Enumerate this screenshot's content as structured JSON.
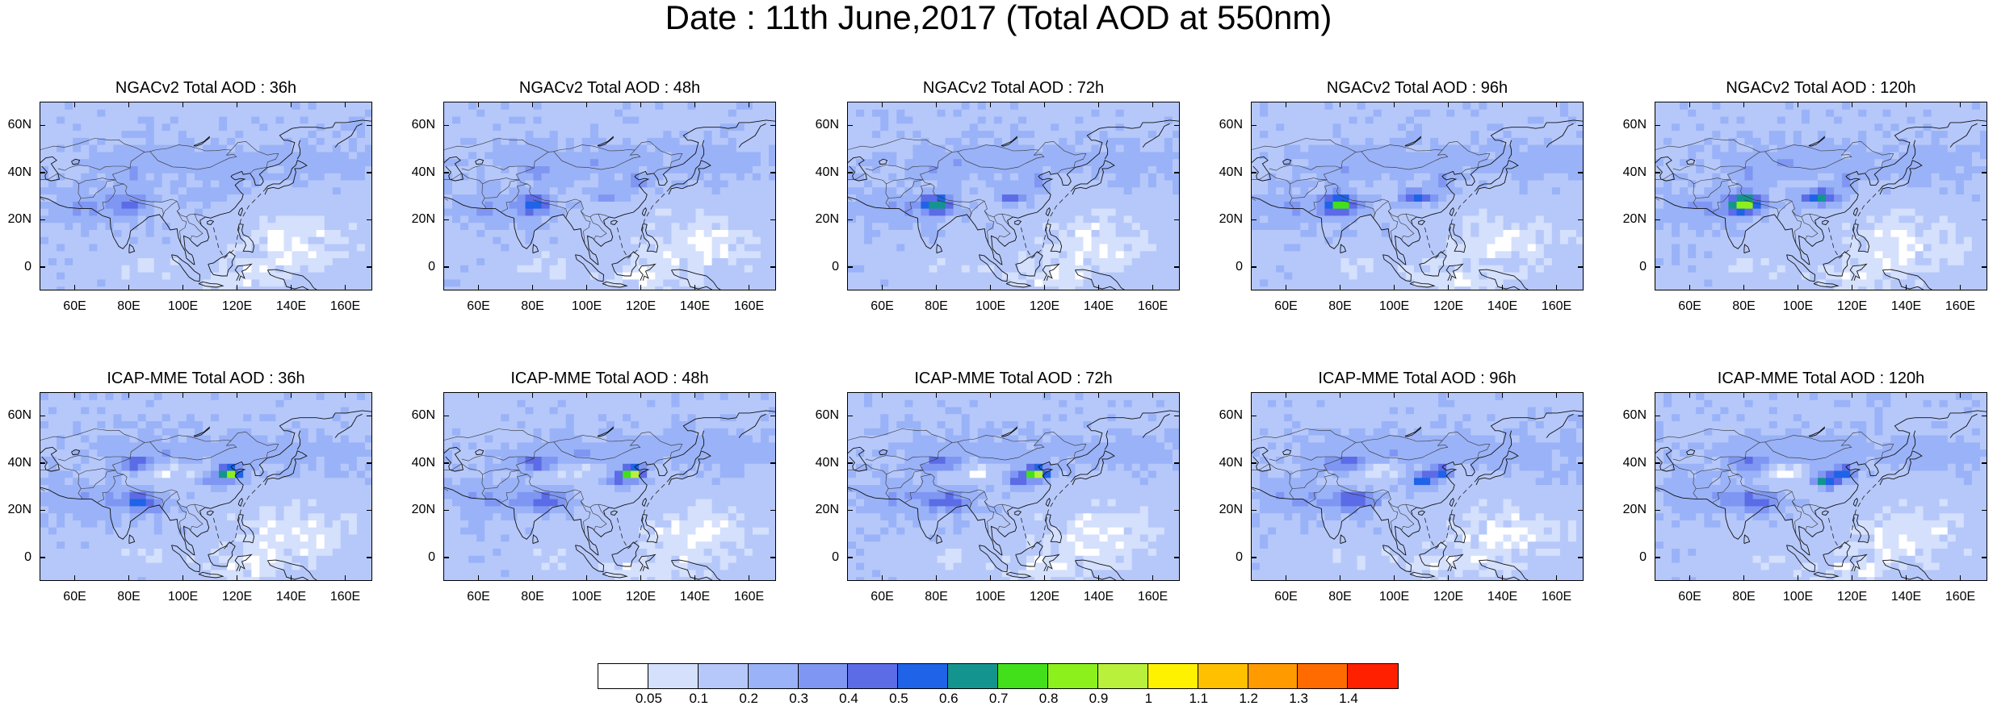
{
  "title": "Date : 11th June,2017 (Total AOD at 550nm)",
  "map_region": {
    "lon_range": [
      47,
      170
    ],
    "lat_range": [
      -10,
      70
    ]
  },
  "axis_labels": {
    "lat": [
      "60N",
      "40N",
      "20N",
      "0"
    ],
    "lon": [
      "60E",
      "80E",
      "100E",
      "120E",
      "140E",
      "160E"
    ]
  },
  "panels": [
    {
      "title": "NGACv2 Total AOD : 36h",
      "model": "NGACv2",
      "lead": "36h"
    },
    {
      "title": "NGACv2 Total AOD : 48h",
      "model": "NGACv2",
      "lead": "48h"
    },
    {
      "title": "NGACv2 Total AOD : 72h",
      "model": "NGACv2",
      "lead": "72h"
    },
    {
      "title": "NGACv2 Total AOD : 96h",
      "model": "NGACv2",
      "lead": "96h"
    },
    {
      "title": "NGACv2 Total AOD : 120h",
      "model": "NGACv2",
      "lead": "120h"
    },
    {
      "title": "ICAP-MME Total AOD : 36h",
      "model": "ICAP-MME",
      "lead": "36h"
    },
    {
      "title": "ICAP-MME Total AOD : 48h",
      "model": "ICAP-MME",
      "lead": "48h"
    },
    {
      "title": "ICAP-MME Total AOD : 72h",
      "model": "ICAP-MME",
      "lead": "72h"
    },
    {
      "title": "ICAP-MME Total AOD : 96h",
      "model": "ICAP-MME",
      "lead": "96h"
    },
    {
      "title": "ICAP-MME Total AOD : 120h",
      "model": "ICAP-MME",
      "lead": "120h"
    }
  ],
  "colorbar": {
    "labels": [
      "0.05",
      "0.1",
      "0.2",
      "0.3",
      "0.4",
      "0.5",
      "0.6",
      "0.7",
      "0.8",
      "0.9",
      "1",
      "1.1",
      "1.2",
      "1.3",
      "1.4"
    ],
    "colors": [
      "#ffffff",
      "#d4e0fc",
      "#b6c8fa",
      "#9ab2f7",
      "#7f97f2",
      "#5c6be6",
      "#1e63e8",
      "#14948e",
      "#42e01a",
      "#8cf01c",
      "#b9f03c",
      "#fff200",
      "#ffc000",
      "#ff9a00",
      "#ff6b00",
      "#ff2000"
    ]
  }
}
